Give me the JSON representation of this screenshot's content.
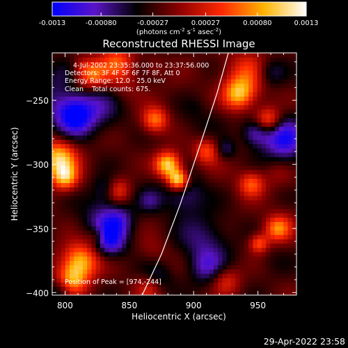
{
  "chart_data": {
    "type": "heatmap",
    "title": "Reconstructed RHESSI Image",
    "xlabel": "Heliocentric X (arcsec)",
    "ylabel": "Heliocentric Y (arcsec)",
    "xlim": [
      790,
      980
    ],
    "ylim": [
      -402,
      -213
    ],
    "x_ticks": [
      800,
      850,
      900,
      950
    ],
    "y_ticks": [
      -250,
      -300,
      -350,
      -400
    ],
    "colorbar": {
      "range": [
        -0.0013,
        0.0013
      ],
      "tick_values": [
        -0.0013,
        -0.0008,
        -0.00027,
        0.00027,
        0.0008,
        0.0013
      ],
      "tick_labels": [
        "-0.0013",
        "-0.00080",
        "-0.00027",
        "0.00027",
        "0.00080",
        "0.0013"
      ],
      "unit_main": "(photons cm",
      "unit_sup1": "-2",
      "unit_mid": " s",
      "unit_sup2": "-1",
      "unit_mid2": " asec",
      "unit_sup3": "-2",
      "unit_end": ")",
      "colors": [
        "#0000ff",
        "#5a14c8",
        "#000000",
        "#8c0000",
        "#ff2800",
        "#ffb400",
        "#ffffff"
      ]
    },
    "annotations": [
      "4-Jul-2002 23:35:36.000 to 23:37:56.000",
      "Detectors: 3F 4F 5F 6F 7F 8F, Att 0",
      "Energy Range: 12.0 - 25.0 keV",
      "Clean    Total counts: 675."
    ],
    "peak_label": "Position of Peak = [974,-244]",
    "limb_curve": [
      [
        860,
        -402
      ],
      [
        875,
        -370
      ],
      [
        890,
        -330
      ],
      [
        905,
        -285
      ],
      [
        918,
        -245
      ],
      [
        927,
        -213
      ]
    ],
    "grid": false
  },
  "footer": {
    "timestamp": "29-Apr-2022 23:58"
  }
}
